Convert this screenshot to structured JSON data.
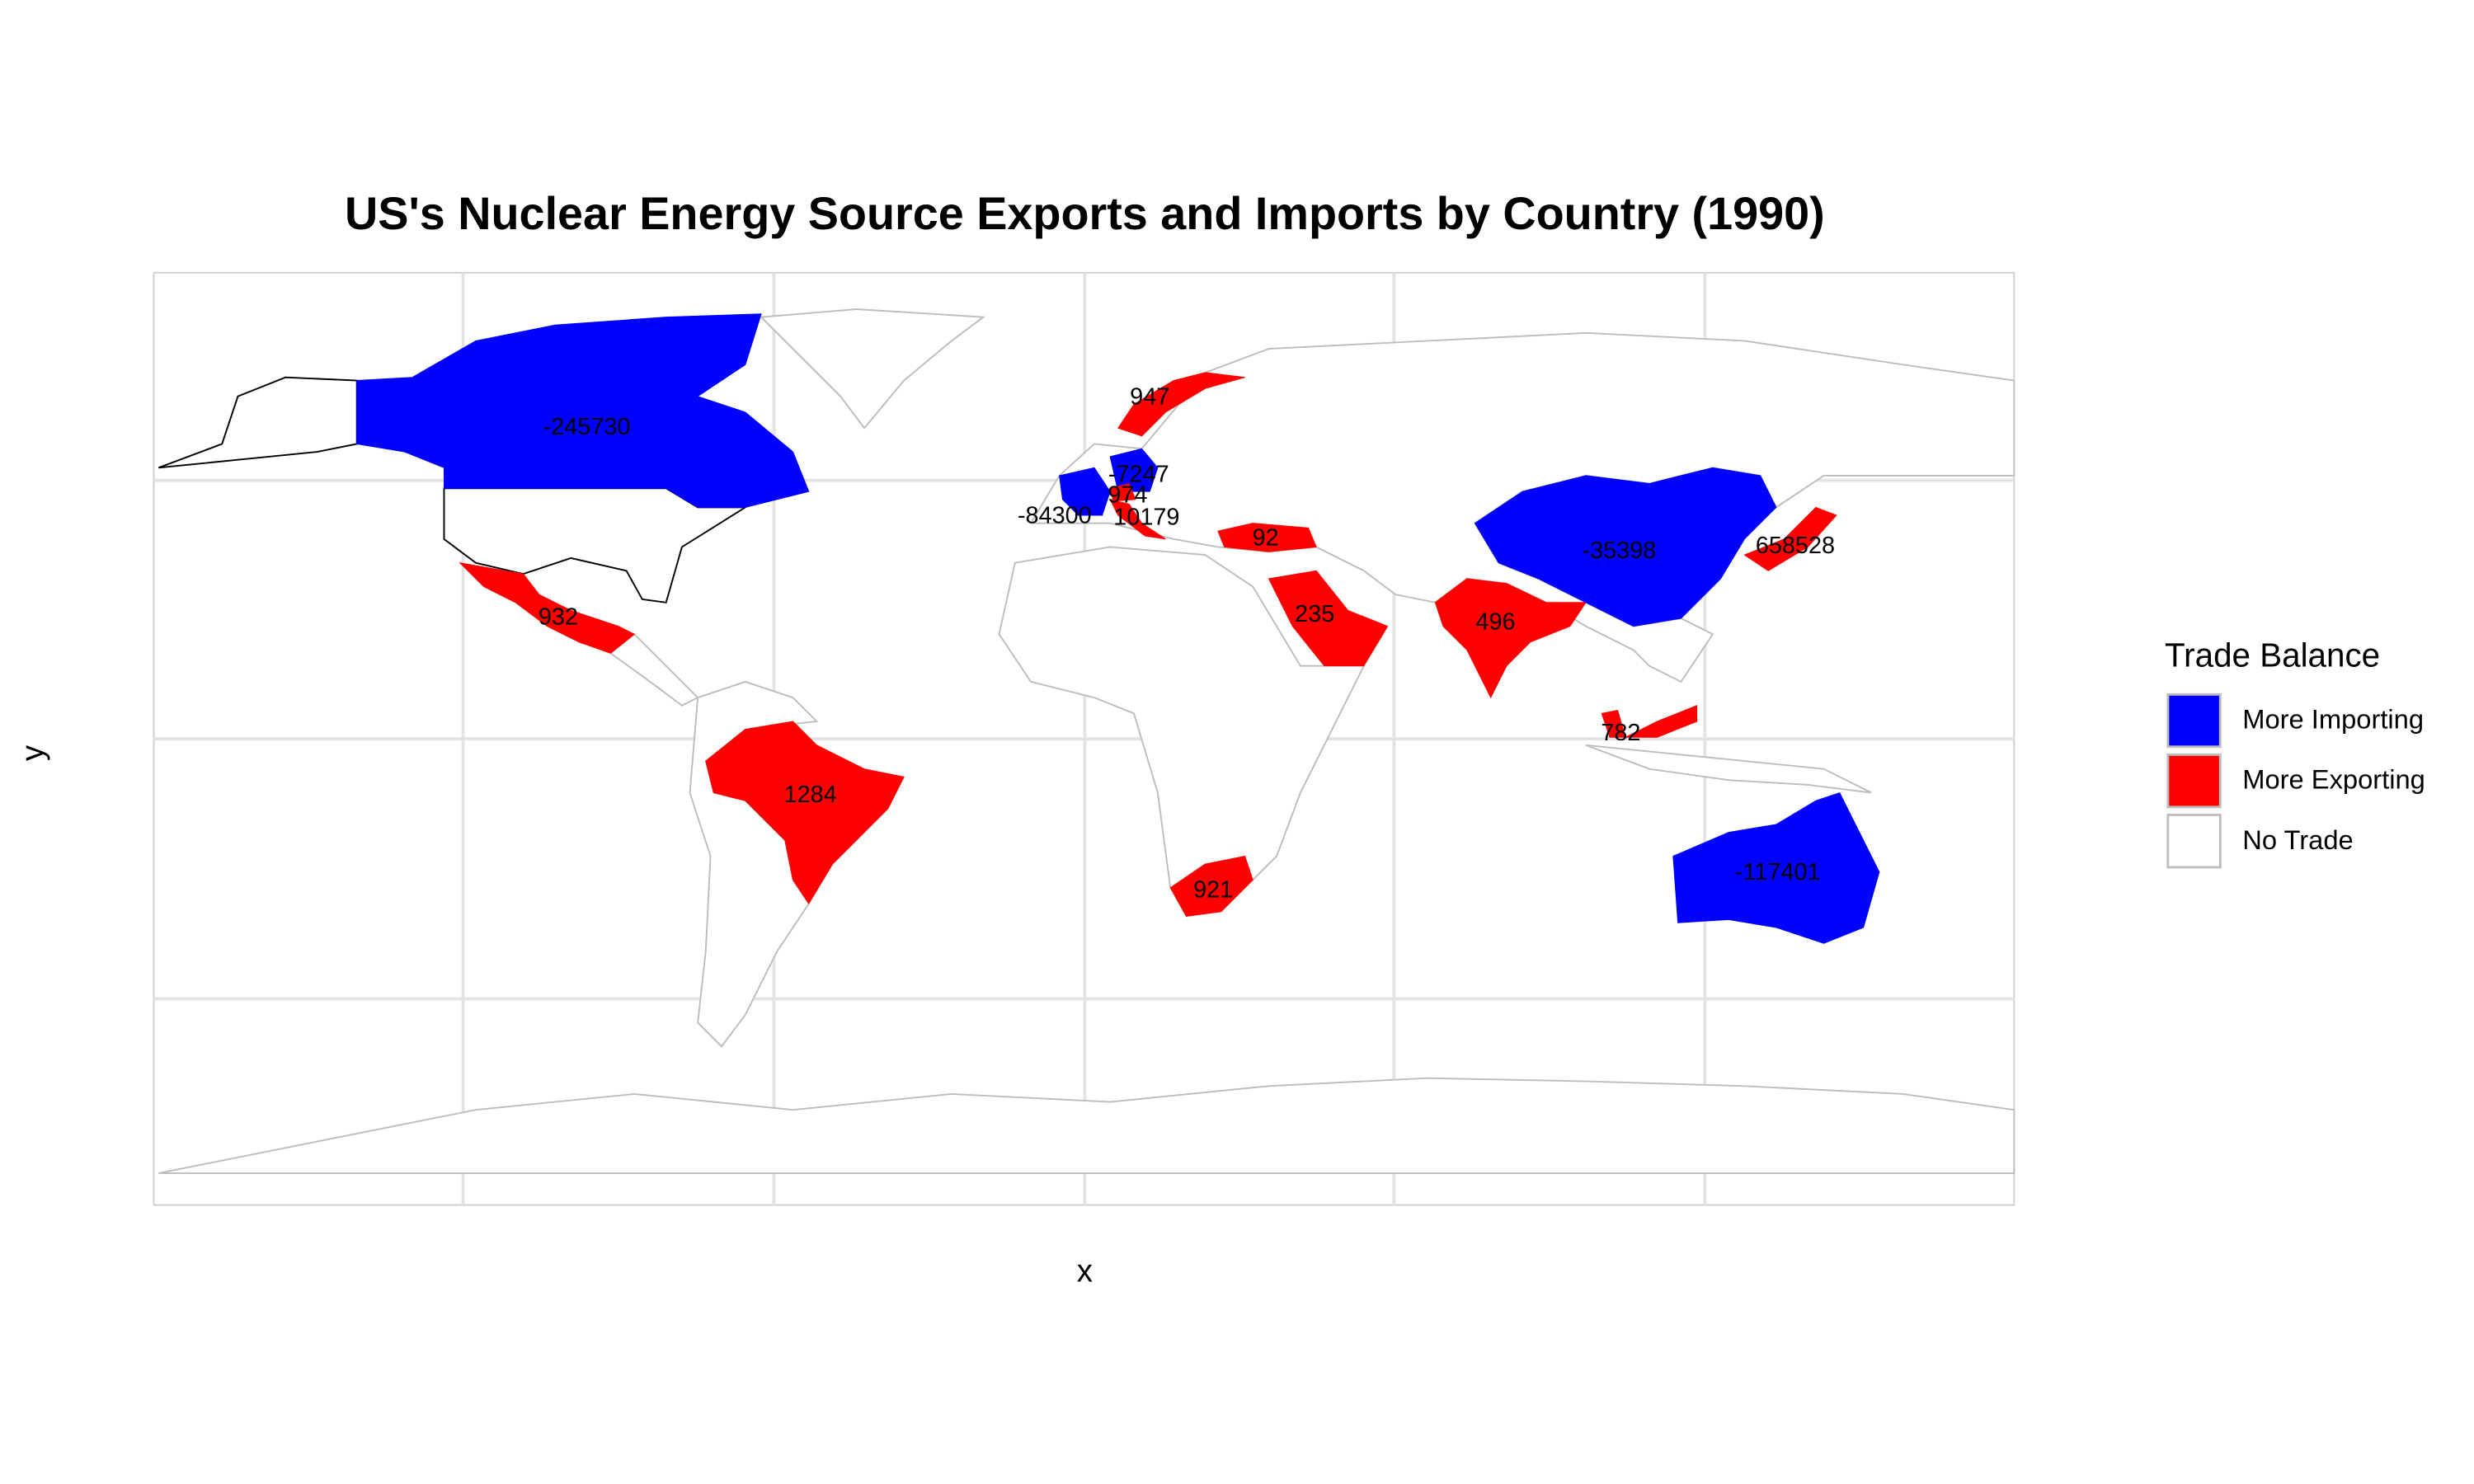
{
  "chart_data": {
    "type": "map",
    "title": "US's Nuclear Energy Source Exports and Imports by Country (1990)",
    "x_label": "x",
    "y_label": "y",
    "legend": {
      "title": "Trade Balance",
      "entries": [
        {
          "name": "More Importing",
          "color": "#0000ff"
        },
        {
          "name": "More Exporting",
          "color": "#ff0000"
        },
        {
          "name": "No Trade",
          "color": "#ffffff"
        }
      ]
    },
    "values": [
      -245730,
      932,
      1284,
      921,
      235,
      496,
      -35398,
      658528,
      782,
      -117401,
      92,
      947,
      -84300,
      10179,
      -7247,
      974
    ]
  }
}
